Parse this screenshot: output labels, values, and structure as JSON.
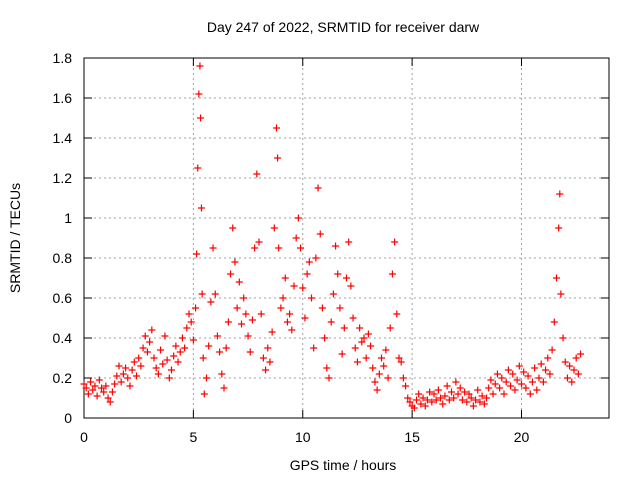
{
  "chart_data": {
    "type": "scatter",
    "title": "Day 247 of 2022, SRMTID for receiver darw",
    "xlabel": "GPS time / hours",
    "ylabel": "SRMTID / TECUs",
    "xlim": [
      0,
      24
    ],
    "ylim": [
      0,
      1.8
    ],
    "x_ticks": [
      0,
      5,
      10,
      15,
      20
    ],
    "x_tick_labels": [
      "0",
      "5",
      "10",
      "15",
      "20"
    ],
    "y_ticks": [
      0,
      0.2,
      0.4,
      0.6,
      0.8,
      1.0,
      1.2,
      1.4,
      1.6,
      1.8
    ],
    "y_tick_labels": [
      "0",
      "0.2",
      "0.4",
      "0.6",
      "0.8",
      "1",
      "1.2",
      "1.4",
      "1.6",
      "1.8"
    ],
    "grid": true,
    "marker": "+",
    "series": [
      {
        "name": "SRMTID",
        "color": "#ff0000",
        "points": [
          [
            0.0,
            0.17
          ],
          [
            0.1,
            0.15
          ],
          [
            0.2,
            0.12
          ],
          [
            0.3,
            0.18
          ],
          [
            0.4,
            0.14
          ],
          [
            0.5,
            0.16
          ],
          [
            0.6,
            0.11
          ],
          [
            0.7,
            0.19
          ],
          [
            0.8,
            0.15
          ],
          [
            0.9,
            0.13
          ],
          [
            1.0,
            0.16
          ],
          [
            1.1,
            0.1
          ],
          [
            1.2,
            0.08
          ],
          [
            1.3,
            0.13
          ],
          [
            1.4,
            0.17
          ],
          [
            1.5,
            0.21
          ],
          [
            1.6,
            0.26
          ],
          [
            1.7,
            0.18
          ],
          [
            1.8,
            0.22
          ],
          [
            1.9,
            0.25
          ],
          [
            2.0,
            0.2
          ],
          [
            2.1,
            0.16
          ],
          [
            2.2,
            0.24
          ],
          [
            2.3,
            0.28
          ],
          [
            2.4,
            0.21
          ],
          [
            2.5,
            0.3
          ],
          [
            2.6,
            0.26
          ],
          [
            2.7,
            0.35
          ],
          [
            2.8,
            0.41
          ],
          [
            2.9,
            0.33
          ],
          [
            3.0,
            0.38
          ],
          [
            3.1,
            0.44
          ],
          [
            3.2,
            0.3
          ],
          [
            3.3,
            0.25
          ],
          [
            3.4,
            0.22
          ],
          [
            3.5,
            0.34
          ],
          [
            3.6,
            0.27
          ],
          [
            3.7,
            0.41
          ],
          [
            3.8,
            0.29
          ],
          [
            3.9,
            0.2
          ],
          [
            4.0,
            0.24
          ],
          [
            4.1,
            0.31
          ],
          [
            4.2,
            0.36
          ],
          [
            4.3,
            0.28
          ],
          [
            4.4,
            0.33
          ],
          [
            4.5,
            0.4
          ],
          [
            4.6,
            0.35
          ],
          [
            4.7,
            0.45
          ],
          [
            4.8,
            0.52
          ],
          [
            4.9,
            0.48
          ],
          [
            5.0,
            0.39
          ],
          [
            5.1,
            0.55
          ],
          [
            5.15,
            0.82
          ],
          [
            5.2,
            1.25
          ],
          [
            5.25,
            1.62
          ],
          [
            5.3,
            1.76
          ],
          [
            5.33,
            1.5
          ],
          [
            5.37,
            1.05
          ],
          [
            5.4,
            0.62
          ],
          [
            5.45,
            0.3
          ],
          [
            5.5,
            0.12
          ],
          [
            5.6,
            0.2
          ],
          [
            5.7,
            0.36
          ],
          [
            5.8,
            0.58
          ],
          [
            5.9,
            0.85
          ],
          [
            6.0,
            0.62
          ],
          [
            6.1,
            0.41
          ],
          [
            6.2,
            0.33
          ],
          [
            6.3,
            0.22
          ],
          [
            6.4,
            0.15
          ],
          [
            6.5,
            0.35
          ],
          [
            6.6,
            0.48
          ],
          [
            6.7,
            0.72
          ],
          [
            6.8,
            0.95
          ],
          [
            6.9,
            0.78
          ],
          [
            7.0,
            0.55
          ],
          [
            7.1,
            0.68
          ],
          [
            7.2,
            0.47
          ],
          [
            7.3,
            0.6
          ],
          [
            7.4,
            0.52
          ],
          [
            7.5,
            0.41
          ],
          [
            7.6,
            0.33
          ],
          [
            7.7,
            0.49
          ],
          [
            7.8,
            0.85
          ],
          [
            7.9,
            1.22
          ],
          [
            8.0,
            0.88
          ],
          [
            8.1,
            0.52
          ],
          [
            8.2,
            0.3
          ],
          [
            8.3,
            0.24
          ],
          [
            8.4,
            0.35
          ],
          [
            8.5,
            0.28
          ],
          [
            8.6,
            0.43
          ],
          [
            8.7,
            0.95
          ],
          [
            8.8,
            1.45
          ],
          [
            8.85,
            1.3
          ],
          [
            8.9,
            0.85
          ],
          [
            9.0,
            0.55
          ],
          [
            9.1,
            0.6
          ],
          [
            9.2,
            0.7
          ],
          [
            9.3,
            0.48
          ],
          [
            9.4,
            0.52
          ],
          [
            9.5,
            0.44
          ],
          [
            9.6,
            0.66
          ],
          [
            9.7,
            0.9
          ],
          [
            9.8,
            1.0
          ],
          [
            9.9,
            0.85
          ],
          [
            10.0,
            0.65
          ],
          [
            10.1,
            0.5
          ],
          [
            10.2,
            0.72
          ],
          [
            10.3,
            0.78
          ],
          [
            10.4,
            0.6
          ],
          [
            10.5,
            0.35
          ],
          [
            10.6,
            0.8
          ],
          [
            10.7,
            1.15
          ],
          [
            10.8,
            0.92
          ],
          [
            10.9,
            0.55
          ],
          [
            11.0,
            0.4
          ],
          [
            11.1,
            0.25
          ],
          [
            11.2,
            0.2
          ],
          [
            11.3,
            0.48
          ],
          [
            11.4,
            0.62
          ],
          [
            11.5,
            0.86
          ],
          [
            11.6,
            0.72
          ],
          [
            11.7,
            0.55
          ],
          [
            11.8,
            0.32
          ],
          [
            11.9,
            0.45
          ],
          [
            12.0,
            0.7
          ],
          [
            12.1,
            0.88
          ],
          [
            12.2,
            0.66
          ],
          [
            12.3,
            0.5
          ],
          [
            12.4,
            0.35
          ],
          [
            12.5,
            0.28
          ],
          [
            12.6,
            0.45
          ],
          [
            12.7,
            0.38
          ],
          [
            12.8,
            0.4
          ],
          [
            12.9,
            0.3
          ],
          [
            13.0,
            0.42
          ],
          [
            13.1,
            0.36
          ],
          [
            13.2,
            0.25
          ],
          [
            13.3,
            0.18
          ],
          [
            13.4,
            0.14
          ],
          [
            13.5,
            0.22
          ],
          [
            13.6,
            0.3
          ],
          [
            13.7,
            0.26
          ],
          [
            13.8,
            0.34
          ],
          [
            13.9,
            0.2
          ],
          [
            14.0,
            0.45
          ],
          [
            14.1,
            0.72
          ],
          [
            14.2,
            0.88
          ],
          [
            14.3,
            0.52
          ],
          [
            14.4,
            0.3
          ],
          [
            14.5,
            0.28
          ],
          [
            14.6,
            0.2
          ],
          [
            14.7,
            0.16
          ],
          [
            14.8,
            0.1
          ],
          [
            14.9,
            0.08
          ],
          [
            15.0,
            0.06
          ],
          [
            15.1,
            0.05
          ],
          [
            15.2,
            0.09
          ],
          [
            15.3,
            0.12
          ],
          [
            15.4,
            0.07
          ],
          [
            15.5,
            0.1
          ],
          [
            15.6,
            0.06
          ],
          [
            15.7,
            0.09
          ],
          [
            15.8,
            0.13
          ],
          [
            15.9,
            0.08
          ],
          [
            16.0,
            0.12
          ],
          [
            16.1,
            0.09
          ],
          [
            16.2,
            0.14
          ],
          [
            16.3,
            0.1
          ],
          [
            16.4,
            0.07
          ],
          [
            16.5,
            0.11
          ],
          [
            16.6,
            0.16
          ],
          [
            16.7,
            0.09
          ],
          [
            16.8,
            0.13
          ],
          [
            16.9,
            0.1
          ],
          [
            17.0,
            0.18
          ],
          [
            17.1,
            0.12
          ],
          [
            17.2,
            0.15
          ],
          [
            17.3,
            0.09
          ],
          [
            17.4,
            0.13
          ],
          [
            17.5,
            0.08
          ],
          [
            17.6,
            0.12
          ],
          [
            17.7,
            0.1
          ],
          [
            17.8,
            0.06
          ],
          [
            17.9,
            0.09
          ],
          [
            18.0,
            0.14
          ],
          [
            18.1,
            0.08
          ],
          [
            18.2,
            0.11
          ],
          [
            18.3,
            0.07
          ],
          [
            18.4,
            0.1
          ],
          [
            18.5,
            0.15
          ],
          [
            18.6,
            0.19
          ],
          [
            18.7,
            0.12
          ],
          [
            18.8,
            0.17
          ],
          [
            18.9,
            0.22
          ],
          [
            19.0,
            0.15
          ],
          [
            19.1,
            0.2
          ],
          [
            19.2,
            0.12
          ],
          [
            19.3,
            0.18
          ],
          [
            19.4,
            0.24
          ],
          [
            19.5,
            0.16
          ],
          [
            19.6,
            0.22
          ],
          [
            19.7,
            0.14
          ],
          [
            19.8,
            0.19
          ],
          [
            19.9,
            0.26
          ],
          [
            20.0,
            0.17
          ],
          [
            20.1,
            0.23
          ],
          [
            20.2,
            0.15
          ],
          [
            20.3,
            0.21
          ],
          [
            20.4,
            0.12
          ],
          [
            20.5,
            0.18
          ],
          [
            20.6,
            0.25
          ],
          [
            20.7,
            0.14
          ],
          [
            20.8,
            0.2
          ],
          [
            20.9,
            0.27
          ],
          [
            21.0,
            0.18
          ],
          [
            21.1,
            0.24
          ],
          [
            21.2,
            0.3
          ],
          [
            21.3,
            0.22
          ],
          [
            21.4,
            0.34
          ],
          [
            21.5,
            0.48
          ],
          [
            21.6,
            0.7
          ],
          [
            21.7,
            0.95
          ],
          [
            21.75,
            1.12
          ],
          [
            21.8,
            0.62
          ],
          [
            21.9,
            0.4
          ],
          [
            22.0,
            0.28
          ],
          [
            22.1,
            0.2
          ],
          [
            22.2,
            0.26
          ],
          [
            22.3,
            0.18
          ],
          [
            22.4,
            0.24
          ],
          [
            22.5,
            0.3
          ],
          [
            22.6,
            0.22
          ],
          [
            22.7,
            0.32
          ]
        ]
      }
    ]
  }
}
